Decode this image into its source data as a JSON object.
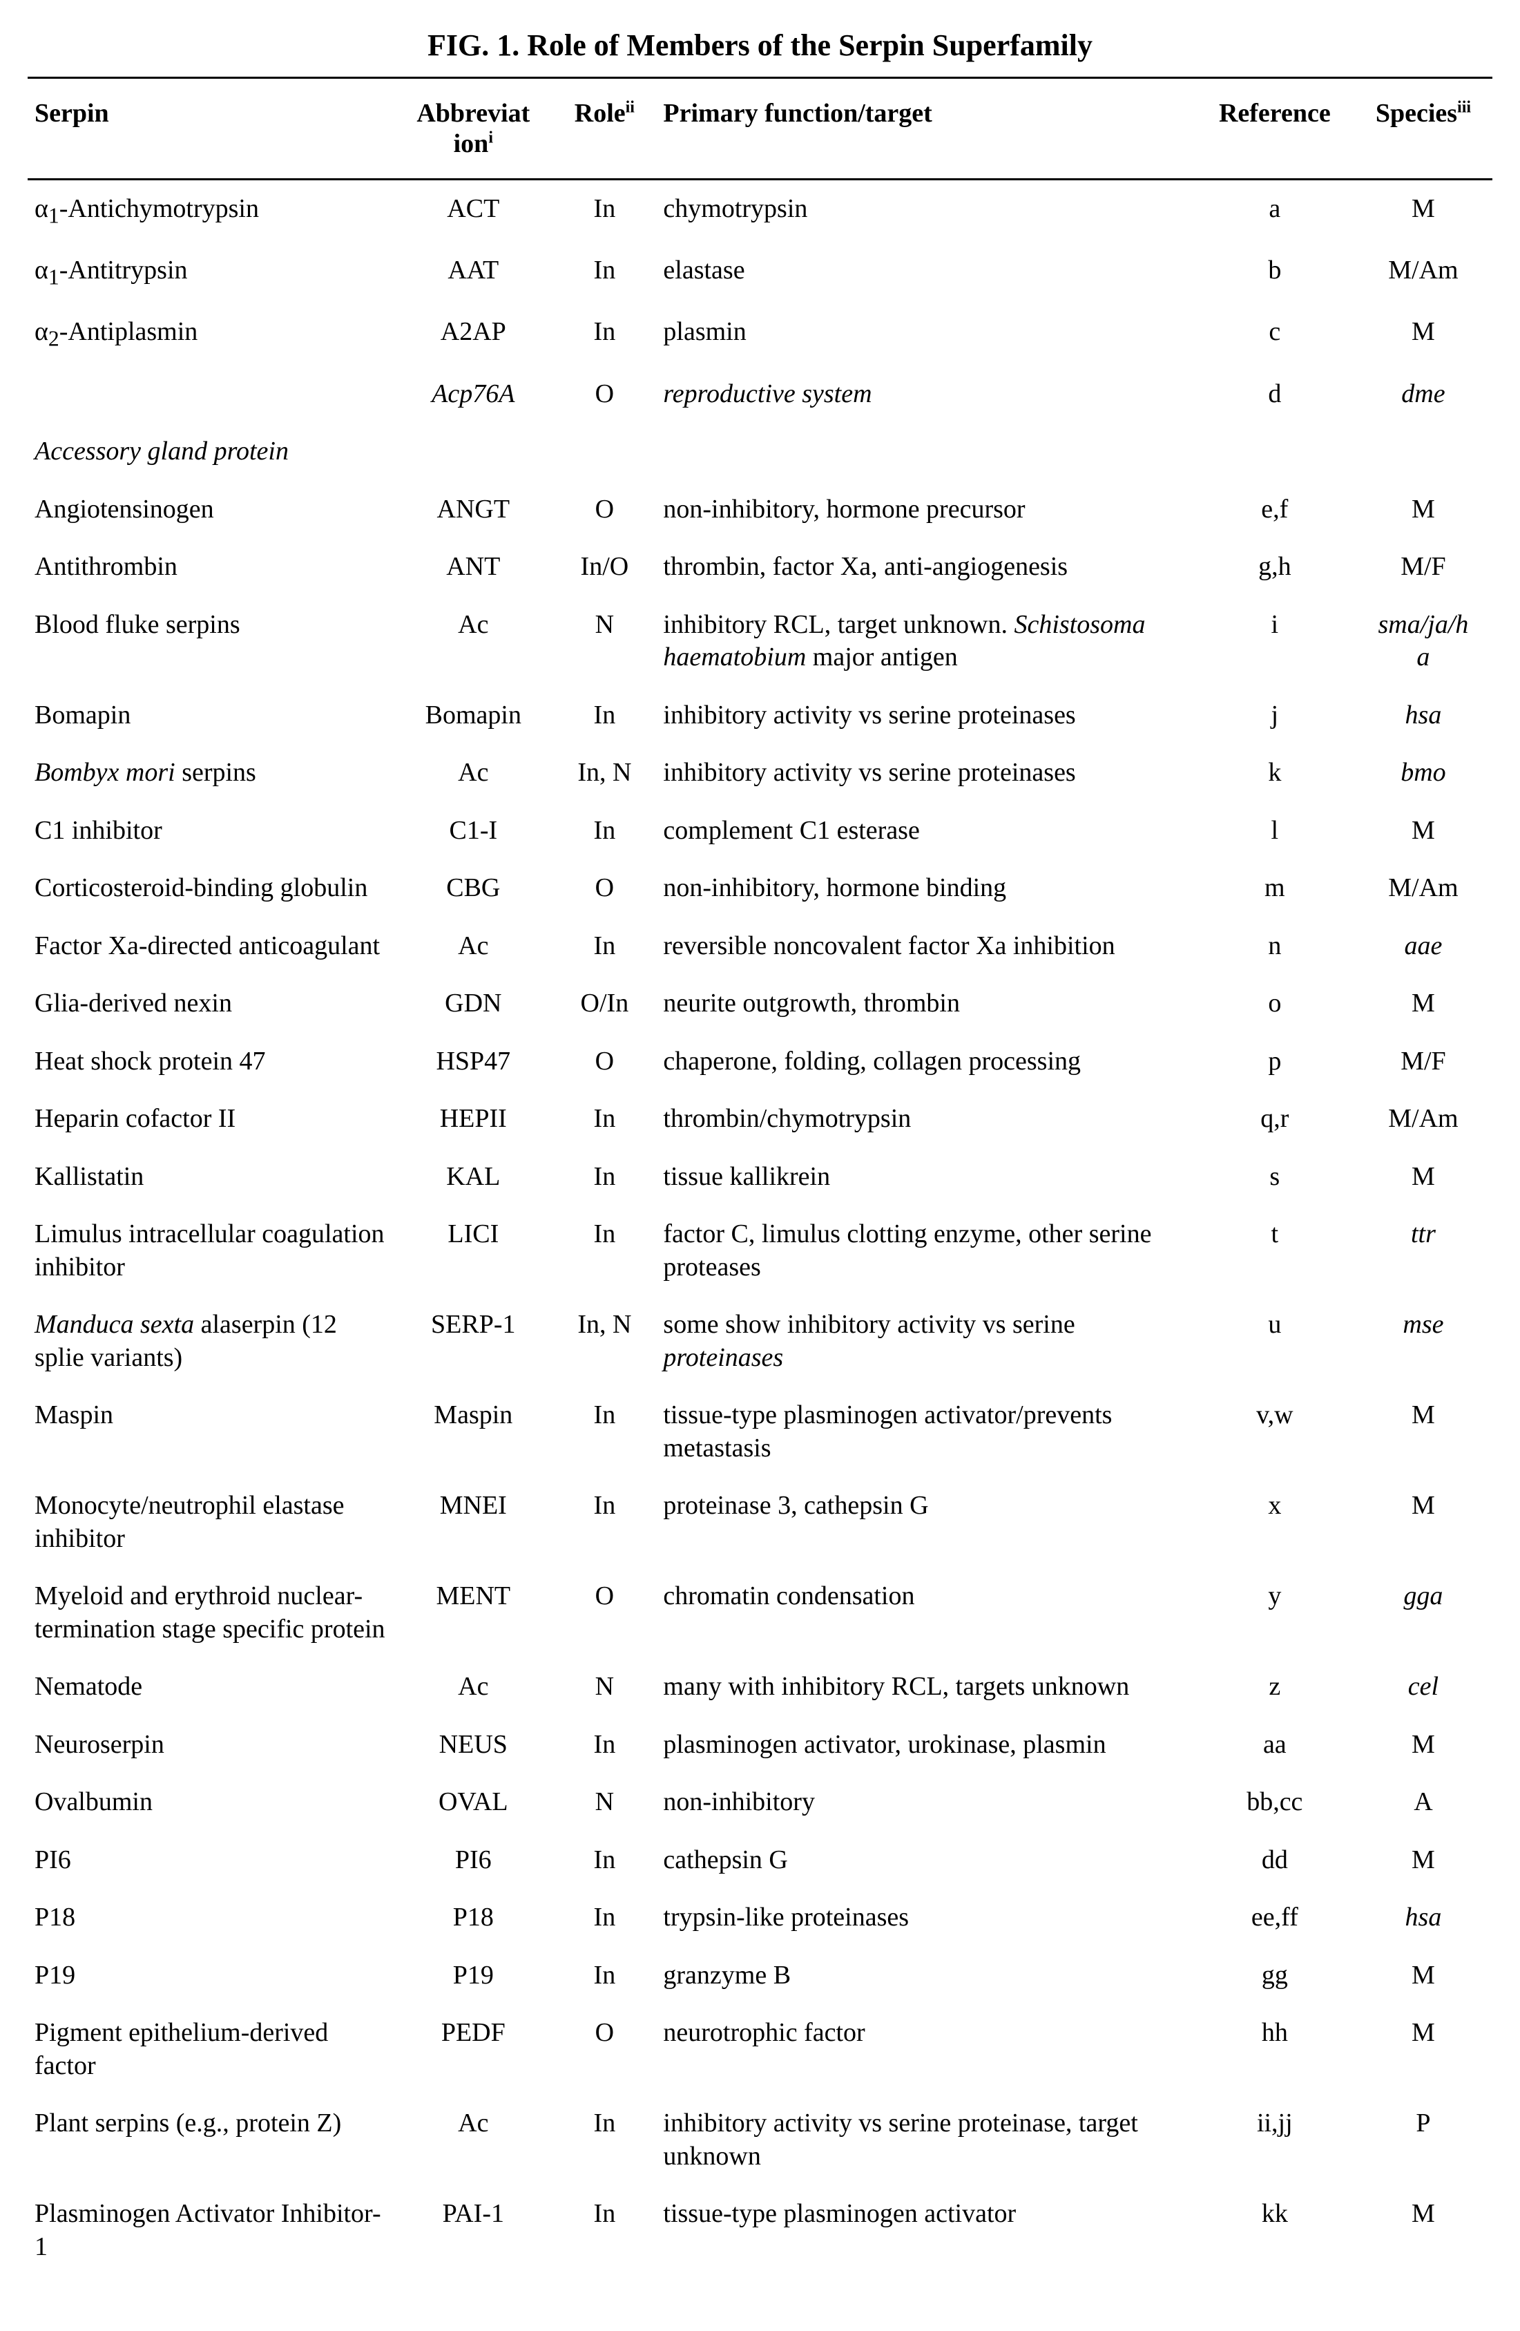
{
  "figureTitle": "FIG. 1.  Role of Members of the Serpin Superfamily",
  "columns": [
    {
      "label": "Serpin",
      "noteHtml": "",
      "align": "left"
    },
    {
      "label": "Abbreviat<br>ion",
      "noteHtml": "i",
      "align": "center"
    },
    {
      "label": "Role",
      "noteHtml": "ii",
      "align": "center"
    },
    {
      "label": "Primary function/target",
      "noteHtml": "",
      "align": "left"
    },
    {
      "label": "Reference",
      "noteHtml": "",
      "align": "center"
    },
    {
      "label": "Species",
      "noteHtml": "iii",
      "align": "center"
    }
  ],
  "rows": [
    {
      "serpin": "α<sub>1</sub>-Antichymotrypsin",
      "abbrev": "ACT",
      "role": "In",
      "func": "chymotrypsin",
      "ref": "a",
      "species": "M"
    },
    {
      "serpin": "α<sub>1</sub>-Antitrypsin",
      "abbrev": "AAT",
      "role": "In",
      "func": "elastase",
      "ref": "b",
      "species": "M/Am"
    },
    {
      "serpin": "α<sub>2</sub>-Antiplasmin",
      "abbrev": "A2AP",
      "role": "In",
      "func": "plasmin",
      "ref": "c",
      "species": "M"
    },
    {
      "serpin": "",
      "abbrev": "<span class='ital'>Acp76A</span>",
      "role": "O",
      "func": "<span class='ital'>reproductive system</span>",
      "ref": "d",
      "species": "<span class='ital'>dme</span>"
    },
    {
      "serpin": "<span class='ital'>Accessory gland protein</span>",
      "abbrev": "",
      "role": "",
      "func": "",
      "ref": "",
      "species": ""
    },
    {
      "serpin": "Angiotensinogen",
      "abbrev": "ANGT",
      "role": "O",
      "func": "non-inhibitory, hormone precursor",
      "ref": "e,f",
      "species": "M"
    },
    {
      "serpin": "Antithrombin",
      "abbrev": "ANT",
      "role": "In/O",
      "func": "thrombin, factor Xa, anti-angiogenesis",
      "ref": "g,h",
      "species": "M/F"
    },
    {
      "serpin": "Blood fluke serpins",
      "abbrev": "Ac",
      "role": "N",
      "func": "inhibitory RCL, target unknown. <span class='ital'>Schistosoma haematobium</span> major antigen",
      "ref": "i",
      "species": "<span class='ital'>sma/ja/h<br>a</span>"
    },
    {
      "serpin": "Bomapin",
      "abbrev": "Bomapin",
      "role": "In",
      "func": "inhibitory activity vs serine proteinases",
      "ref": "j",
      "species": "<span class='ital'>hsa</span>"
    },
    {
      "serpin": "<span class='ital'>Bombyx mori</span> serpins",
      "abbrev": "Ac",
      "role": "In, N",
      "func": "inhibitory activity vs serine proteinases",
      "ref": "k",
      "species": "<span class='ital'>bmo</span>"
    },
    {
      "serpin": "C1 inhibitor",
      "abbrev": "C1-I",
      "role": "In",
      "func": "complement C1 esterase",
      "ref": "l",
      "species": "M"
    },
    {
      "serpin": "Corticosteroid-binding globulin",
      "abbrev": "CBG",
      "role": "O",
      "func": "non-inhibitory, hormone binding",
      "ref": "m",
      "species": "M/Am"
    },
    {
      "serpin": "Factor Xa-directed anticoagulant",
      "abbrev": "Ac",
      "role": "In",
      "func": "reversible noncovalent factor Xa inhibition",
      "ref": "n",
      "species": "<span class='ital'>aae</span>"
    },
    {
      "serpin": "Glia-derived nexin",
      "abbrev": "GDN",
      "role": "O/In",
      "func": "neurite outgrowth, thrombin",
      "ref": "o",
      "species": "M"
    },
    {
      "serpin": "Heat shock protein 47",
      "abbrev": "HSP47",
      "role": "O",
      "func": "chaperone, folding, collagen processing",
      "ref": "p",
      "species": "M/F"
    },
    {
      "serpin": "Heparin cofactor II",
      "abbrev": "HEPII",
      "role": "In",
      "func": "thrombin/chymotrypsin",
      "ref": "q,r",
      "species": "M/Am"
    },
    {
      "serpin": "Kallistatin",
      "abbrev": "KAL",
      "role": "In",
      "func": "tissue kallikrein",
      "ref": "s",
      "species": "M"
    },
    {
      "serpin": "Limulus intracellular coagulation inhibitor",
      "abbrev": "LICI",
      "role": "In",
      "func": "factor C, limulus clotting enzyme, other serine proteases",
      "ref": "t",
      "species": "<span class='ital'>ttr</span>"
    },
    {
      "serpin": "<span class='ital'>Manduca sexta</span> alaserpin (12 splie variants)",
      "abbrev": "SERP-1",
      "role": "In, N",
      "func": "some show inhibitory activity vs serine <span class='ital'>proteinases</span>",
      "ref": "u",
      "species": "<span class='ital'>mse</span>"
    },
    {
      "serpin": "Maspin",
      "abbrev": "Maspin",
      "role": "In",
      "func": "tissue-type plasminogen activator/prevents metastasis",
      "ref": "v,w",
      "species": "M"
    },
    {
      "serpin": "Monocyte/neutrophil elastase inhibitor",
      "abbrev": "MNEI",
      "role": "In",
      "func": "proteinase 3, cathepsin G",
      "ref": "x",
      "species": "M"
    },
    {
      "serpin": "Myeloid and erythroid nuclear-termination stage specific protein",
      "abbrev": "MENT",
      "role": "O",
      "func": "chromatin condensation",
      "ref": "y",
      "species": "<span class='ital'>gga</span>"
    },
    {
      "serpin": "Nematode",
      "abbrev": "Ac",
      "role": "N",
      "func": "many with inhibitory RCL, targets unknown",
      "ref": "z",
      "species": "<span class='ital'>cel</span>"
    },
    {
      "serpin": "Neuroserpin",
      "abbrev": "NEUS",
      "role": "In",
      "func": "plasminogen activator, urokinase, plasmin",
      "ref": "aa",
      "species": "M"
    },
    {
      "serpin": "Ovalbumin",
      "abbrev": "OVAL",
      "role": "N",
      "func": "non-inhibitory",
      "ref": "bb,cc",
      "species": "A"
    },
    {
      "serpin": "PI6",
      "abbrev": "PI6",
      "role": "In",
      "func": "cathepsin G",
      "ref": "dd",
      "species": "M"
    },
    {
      "serpin": "P18",
      "abbrev": "P18",
      "role": "In",
      "func": "trypsin-like proteinases",
      "ref": "ee,ff",
      "species": "<span class='ital'>hsa</span>"
    },
    {
      "serpin": "P19",
      "abbrev": "P19",
      "role": "In",
      "func": "granzyme B",
      "ref": "gg",
      "species": "M"
    },
    {
      "serpin": "Pigment epithelium-derived factor",
      "abbrev": "PEDF",
      "role": "O",
      "func": "neurotrophic factor",
      "ref": "hh",
      "species": "M"
    },
    {
      "serpin": "Plant serpins (e.g., protein Z)",
      "abbrev": "Ac",
      "role": "In",
      "func": "inhibitory activity vs serine proteinase, target unknown",
      "ref": "ii,jj",
      "species": "P"
    },
    {
      "serpin": "Plasminogen Activator Inhibitor-1",
      "abbrev": "PAI-1",
      "role": "In",
      "func": "tissue-type plasminogen activator",
      "ref": "kk",
      "species": "M"
    }
  ]
}
